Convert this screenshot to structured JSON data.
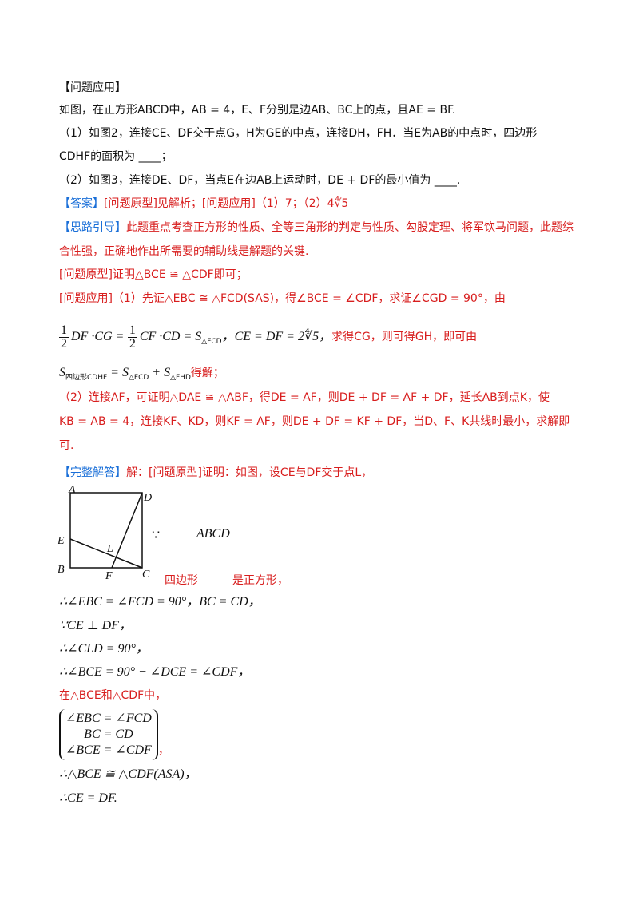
{
  "section_title": "【问题应用】",
  "problem": {
    "intro": "如图，在正方形ABCD中，AB = 4，E、F分别是边AB、BC上的点，且AE = BF.",
    "q1_line1": "（1）如图2，连接CE、DF交于点G，H为GE的中点，连接DH，FH．当E为AB的中点时，四边形",
    "q1_line2": "CDHF的面积为 ____；",
    "q2": "（2）如图3，连接DE、DF，当点E在边AB上运动时，DE + DF的最小值为 ____."
  },
  "answer": {
    "label": "【答案】",
    "text": "[问题原型]见解析；[问题应用]（1）7；（2）4∜5"
  },
  "guide": {
    "label": "【思路引导】",
    "line1": "此题重点考查正方形的性质、全等三角形的判定与性质、勾股定理、将军饮马问题，此题综",
    "line2": "合性强，正确地作出所需要的辅助线是解题的关键."
  },
  "analysis": {
    "proto": "[问题原型]证明△BCE ≅ △CDF即可；",
    "app1": "[问题应用]（1）先证△EBC ≅ △FCD(SAS)，得∠BCE = ∠CDF，求证∠CGD = 90°，由",
    "frac_num": "1",
    "frac_den": "2",
    "eq_a": "DF ·CG =",
    "eq_b": "CF ·CD = S",
    "eq_b_sub": "△FCD",
    "eq_c": "，CE = DF = 2∜5，",
    "eq_tail": "求得CG，则可得GH，即可由",
    "s_line_main": "S",
    "s_line_sub1": "四边形CDHF",
    "s_line_mid": " = S",
    "s_line_sub2": "△FCD",
    "s_line_mid2": " + S",
    "s_line_sub3": "△FHD",
    "s_line_tail": "得解；",
    "q2_line1": "（2）连接AF，可证明△DAE ≅ △ABF，得DE = AF，则DE + DF = AF + DF，延长AB到点K，使",
    "q2_line2": "KB = AB = 4，连接KF、KD，则KF = AF，则DE + DF = KF + DF，当D、F、K共线时最小，求解即",
    "q2_line3": "可."
  },
  "solution": {
    "label": "【完整解答】",
    "intro": "解：[问题原型]证明：如图，设CE与DF交于点L，",
    "because_sym": "∵",
    "square_name": "ABCD",
    "square_text_a": "四边形",
    "square_text_b": "是正方形，",
    "s1": "∴∠EBC = ∠FCD = 90°，BC = CD，",
    "s2": "∵CE ⊥ DF，",
    "s3": "∴∠CLD = 90°，",
    "s4": "∴∠BCE = 90° − ∠DCE = ∠CDF，",
    "s5": "在△BCE和△CDF中，",
    "sys": [
      "∠EBC = ∠FCD",
      "BC = CD",
      "∠BCE = ∠CDF"
    ],
    "sys_tail": "，",
    "s6": "∴△BCE ≅ △CDF(ASA)，",
    "s7": "∴CE = DF."
  },
  "figure": {
    "labels": {
      "A": "A",
      "B": "B",
      "C": "C",
      "D": "D",
      "E": "E",
      "F": "F",
      "L": "L"
    }
  }
}
